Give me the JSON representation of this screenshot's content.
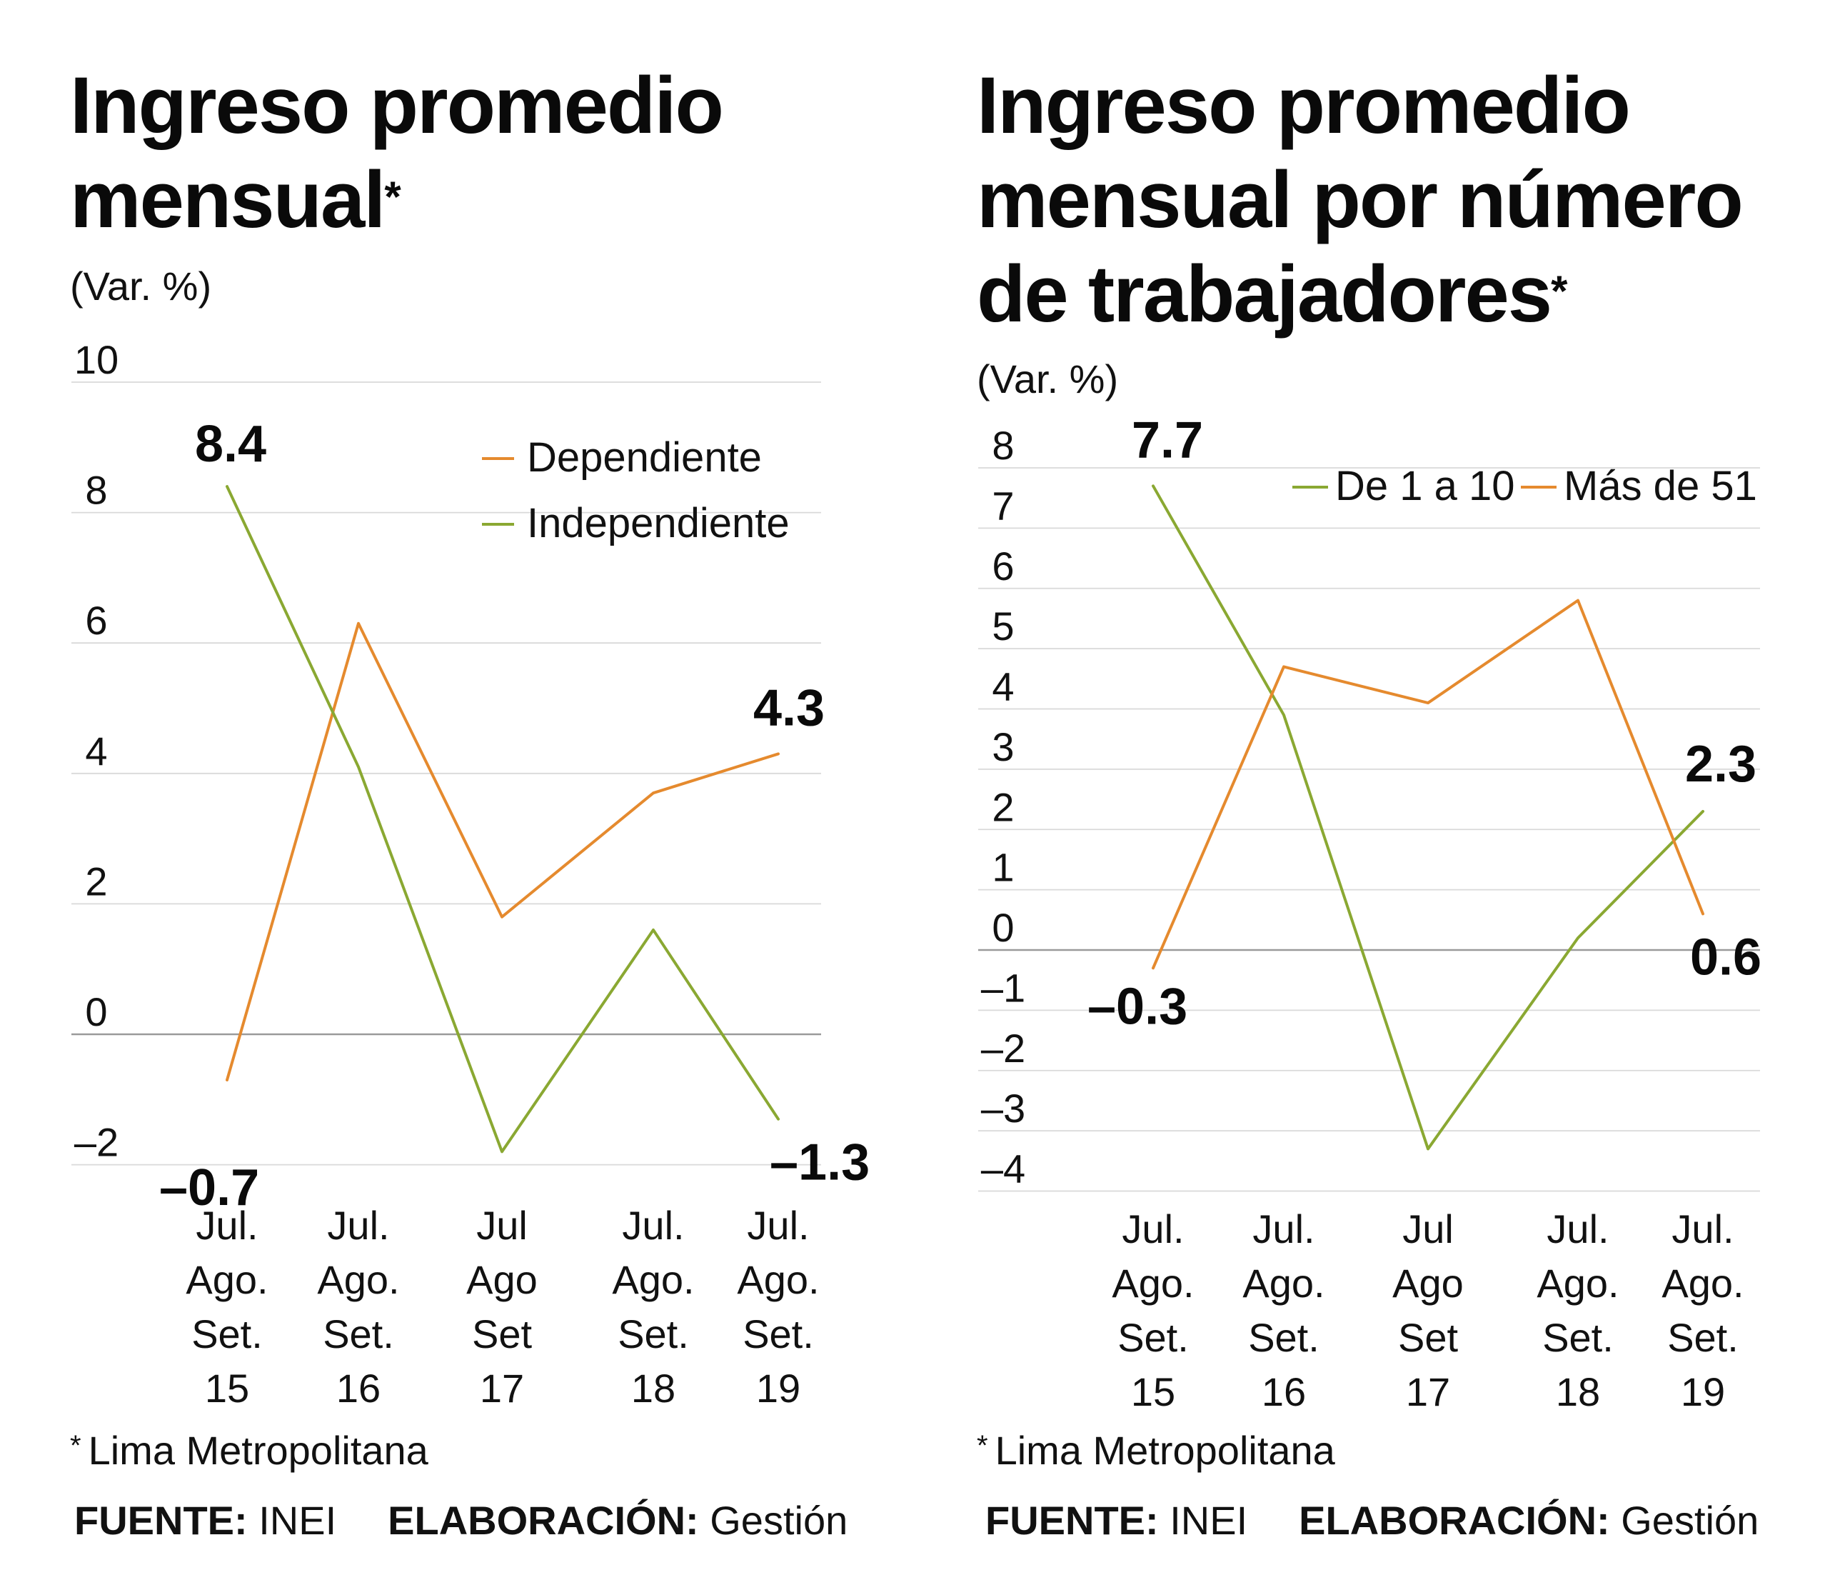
{
  "colors": {
    "orange": "#e58a2e",
    "green": "#8aa832",
    "grid": "#d9d9d9",
    "axis": "#9a9a9a"
  },
  "charts": [
    {
      "id": "left",
      "title_lines": [
        "Ingreso promedio",
        "mensual"
      ],
      "title_star": "*",
      "unit": "(Var. %)",
      "footnote_star": "*",
      "footnote": "Lima Metropolitana",
      "source_label": "FUENTE:",
      "source_value": "INEI",
      "made_label": "ELABORACIÓN:",
      "made_value": "Gestión"
    },
    {
      "id": "right",
      "title_lines": [
        "Ingreso promedio",
        "mensual por número",
        "de trabajadores"
      ],
      "title_star": "*",
      "unit": "(Var. %)",
      "footnote_star": "*",
      "footnote": "Lima Metropolitana",
      "source_label": "FUENTE:",
      "source_value": "INEI",
      "made_label": "ELABORACIÓN:",
      "made_value": "Gestión"
    }
  ],
  "chart_data": [
    {
      "type": "line",
      "title": "Ingreso promedio mensual*",
      "ylabel": "(Var. %)",
      "ylim": [
        -2.2,
        10
      ],
      "yticks": [
        10,
        8,
        6,
        4,
        2,
        0,
        -2
      ],
      "ytick_labels": [
        "10",
        "8",
        "6",
        "4",
        "2",
        "0",
        "-2"
      ],
      "categories": [
        [
          "Jul.",
          "Ago.",
          "Set.",
          "15"
        ],
        [
          "Jul.",
          "Ago.",
          "Set.",
          "16"
        ],
        [
          "Jul",
          "Ago",
          "Set",
          "17"
        ],
        [
          "Jul.",
          "Ago.",
          "Set.",
          "18"
        ],
        [
          "Jul.",
          "Ago.",
          "Set.",
          "19"
        ]
      ],
      "series": [
        {
          "name": "Dependiente",
          "color": "#e58a2e",
          "values": [
            -0.7,
            6.3,
            1.8,
            3.7,
            4.3
          ]
        },
        {
          "name": "Independiente",
          "color": "#8aa832",
          "values": [
            8.4,
            4.1,
            -1.8,
            1.6,
            -1.3
          ]
        }
      ],
      "legend": "top-right, stacked",
      "annotations": [
        {
          "series": "Independiente",
          "index": 0,
          "text": "8.4"
        },
        {
          "series": "Dependiente",
          "index": 0,
          "text": "-0.7"
        },
        {
          "series": "Dependiente",
          "index": 4,
          "text": "4.3"
        },
        {
          "series": "Independiente",
          "index": 4,
          "text": "-1.3"
        }
      ]
    },
    {
      "type": "line",
      "title": "Ingreso promedio mensual por número de trabajadores*",
      "ylabel": "(Var. %)",
      "ylim": [
        -4.2,
        8.5
      ],
      "yticks": [
        8,
        7,
        6,
        5,
        4,
        3,
        2,
        1,
        0,
        -1,
        -2,
        -3,
        -4
      ],
      "ytick_labels": [
        "8",
        "7",
        "6",
        "5",
        "4",
        "3",
        "2",
        "1",
        "0",
        "-1",
        "-2",
        "-3",
        "-4"
      ],
      "categories": [
        [
          "Jul.",
          "Ago.",
          "Set.",
          "15"
        ],
        [
          "Jul.",
          "Ago.",
          "Set.",
          "16"
        ],
        [
          "Jul",
          "Ago",
          "Set",
          "17"
        ],
        [
          "Jul.",
          "Ago.",
          "Set.",
          "18"
        ],
        [
          "Jul.",
          "Ago.",
          "Set.",
          "19"
        ]
      ],
      "series": [
        {
          "name": "De 1 a 10",
          "color": "#8aa832",
          "values": [
            7.7,
            3.9,
            -3.3,
            0.2,
            2.3
          ]
        },
        {
          "name": "Más de 51",
          "color": "#e58a2e",
          "values": [
            -0.3,
            4.7,
            4.1,
            5.8,
            0.6
          ]
        }
      ],
      "legend": "top-right, inline",
      "annotations": [
        {
          "series": "De 1 a 10",
          "index": 0,
          "text": "7.7"
        },
        {
          "series": "Más de 51",
          "index": 0,
          "text": "-0.3"
        },
        {
          "series": "De 1 a 10",
          "index": 4,
          "text": "2.3"
        },
        {
          "series": "Más de 51",
          "index": 4,
          "text": "0.6"
        }
      ]
    }
  ]
}
